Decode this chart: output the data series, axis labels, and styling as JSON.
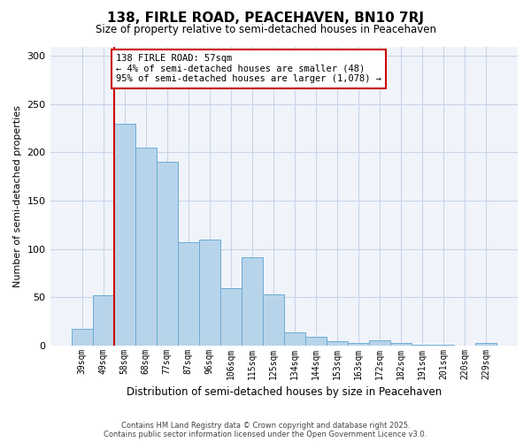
{
  "title": "138, FIRLE ROAD, PEACEHAVEN, BN10 7RJ",
  "subtitle": "Size of property relative to semi-detached houses in Peacehaven",
  "xlabel": "Distribution of semi-detached houses by size in Peacehaven",
  "ylabel": "Number of semi-detached properties",
  "categories": [
    "39sqm",
    "49sqm",
    "58sqm",
    "68sqm",
    "77sqm",
    "87sqm",
    "96sqm",
    "106sqm",
    "115sqm",
    "125sqm",
    "134sqm",
    "144sqm",
    "153sqm",
    "163sqm",
    "172sqm",
    "182sqm",
    "191sqm",
    "201sqm",
    "220sqm",
    "229sqm"
  ],
  "values": [
    17,
    52,
    230,
    205,
    190,
    107,
    110,
    59,
    91,
    53,
    13,
    9,
    4,
    2,
    5,
    2,
    1,
    1,
    0,
    2
  ],
  "bar_color": "#b8d4ea",
  "bar_edge_color": "#6aacd6",
  "highlight_line_color": "#cc0000",
  "annotation_title": "138 FIRLE ROAD: 57sqm",
  "annotation_line1": "← 4% of semi-detached houses are smaller (48)",
  "annotation_line2": "95% of semi-detached houses are larger (1,078) →",
  "annotation_box_edge_color": "#cc0000",
  "ylim": [
    0,
    310
  ],
  "yticks": [
    0,
    50,
    100,
    150,
    200,
    250,
    300
  ],
  "footer1": "Contains HM Land Registry data © Crown copyright and database right 2025.",
  "footer2": "Contains public sector information licensed under the Open Government Licence v3.0.",
  "background_color": "#ffffff",
  "plot_bg_color": "#f0f4fa",
  "grid_color": "#c8d4e8"
}
